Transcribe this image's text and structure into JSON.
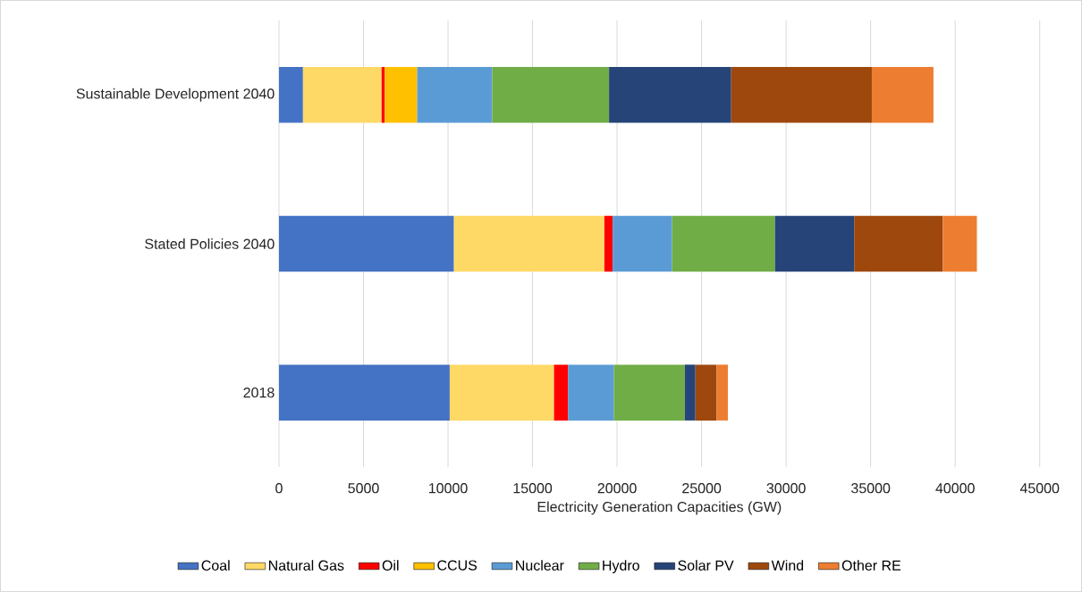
{
  "chart_data": {
    "type": "bar",
    "orientation": "horizontal",
    "stacked": true,
    "xlabel": "Electricity Generation Capacities (GW)",
    "categories": [
      "Sustainable Development 2040",
      "Stated Policies 2040",
      "2018"
    ],
    "series": [
      {
        "name": "Coal",
        "color": "#4472c4",
        "values": [
          1420,
          10350,
          10100
        ]
      },
      {
        "name": "Natural Gas",
        "color": "#ffd966",
        "values": [
          4650,
          8900,
          6170
        ]
      },
      {
        "name": "Oil",
        "color": "#ff0000",
        "values": [
          190,
          490,
          830
        ]
      },
      {
        "name": "CCUS",
        "color": "#ffc000",
        "values": [
          1915,
          null,
          null
        ]
      },
      {
        "name": "Nuclear",
        "color": "#5b9bd5",
        "values": [
          4435,
          3510,
          2715
        ]
      },
      {
        "name": "Hydro",
        "color": "#70ad47",
        "values": [
          6915,
          6090,
          4190
        ]
      },
      {
        "name": "Solar PV",
        "color": "#264478",
        "values": [
          7225,
          4685,
          630
        ]
      },
      {
        "name": "Wind",
        "color": "#9e480e",
        "values": [
          8320,
          5240,
          1255
        ]
      },
      {
        "name": "Other RE",
        "color": "#ed7d31",
        "values": [
          3645,
          2020,
          665
        ]
      }
    ],
    "xlim": [
      0,
      45000
    ],
    "xticks": [
      0,
      5000,
      10000,
      15000,
      20000,
      25000,
      30000,
      35000,
      40000,
      45000
    ],
    "grid": "x",
    "legend": "bottom"
  }
}
